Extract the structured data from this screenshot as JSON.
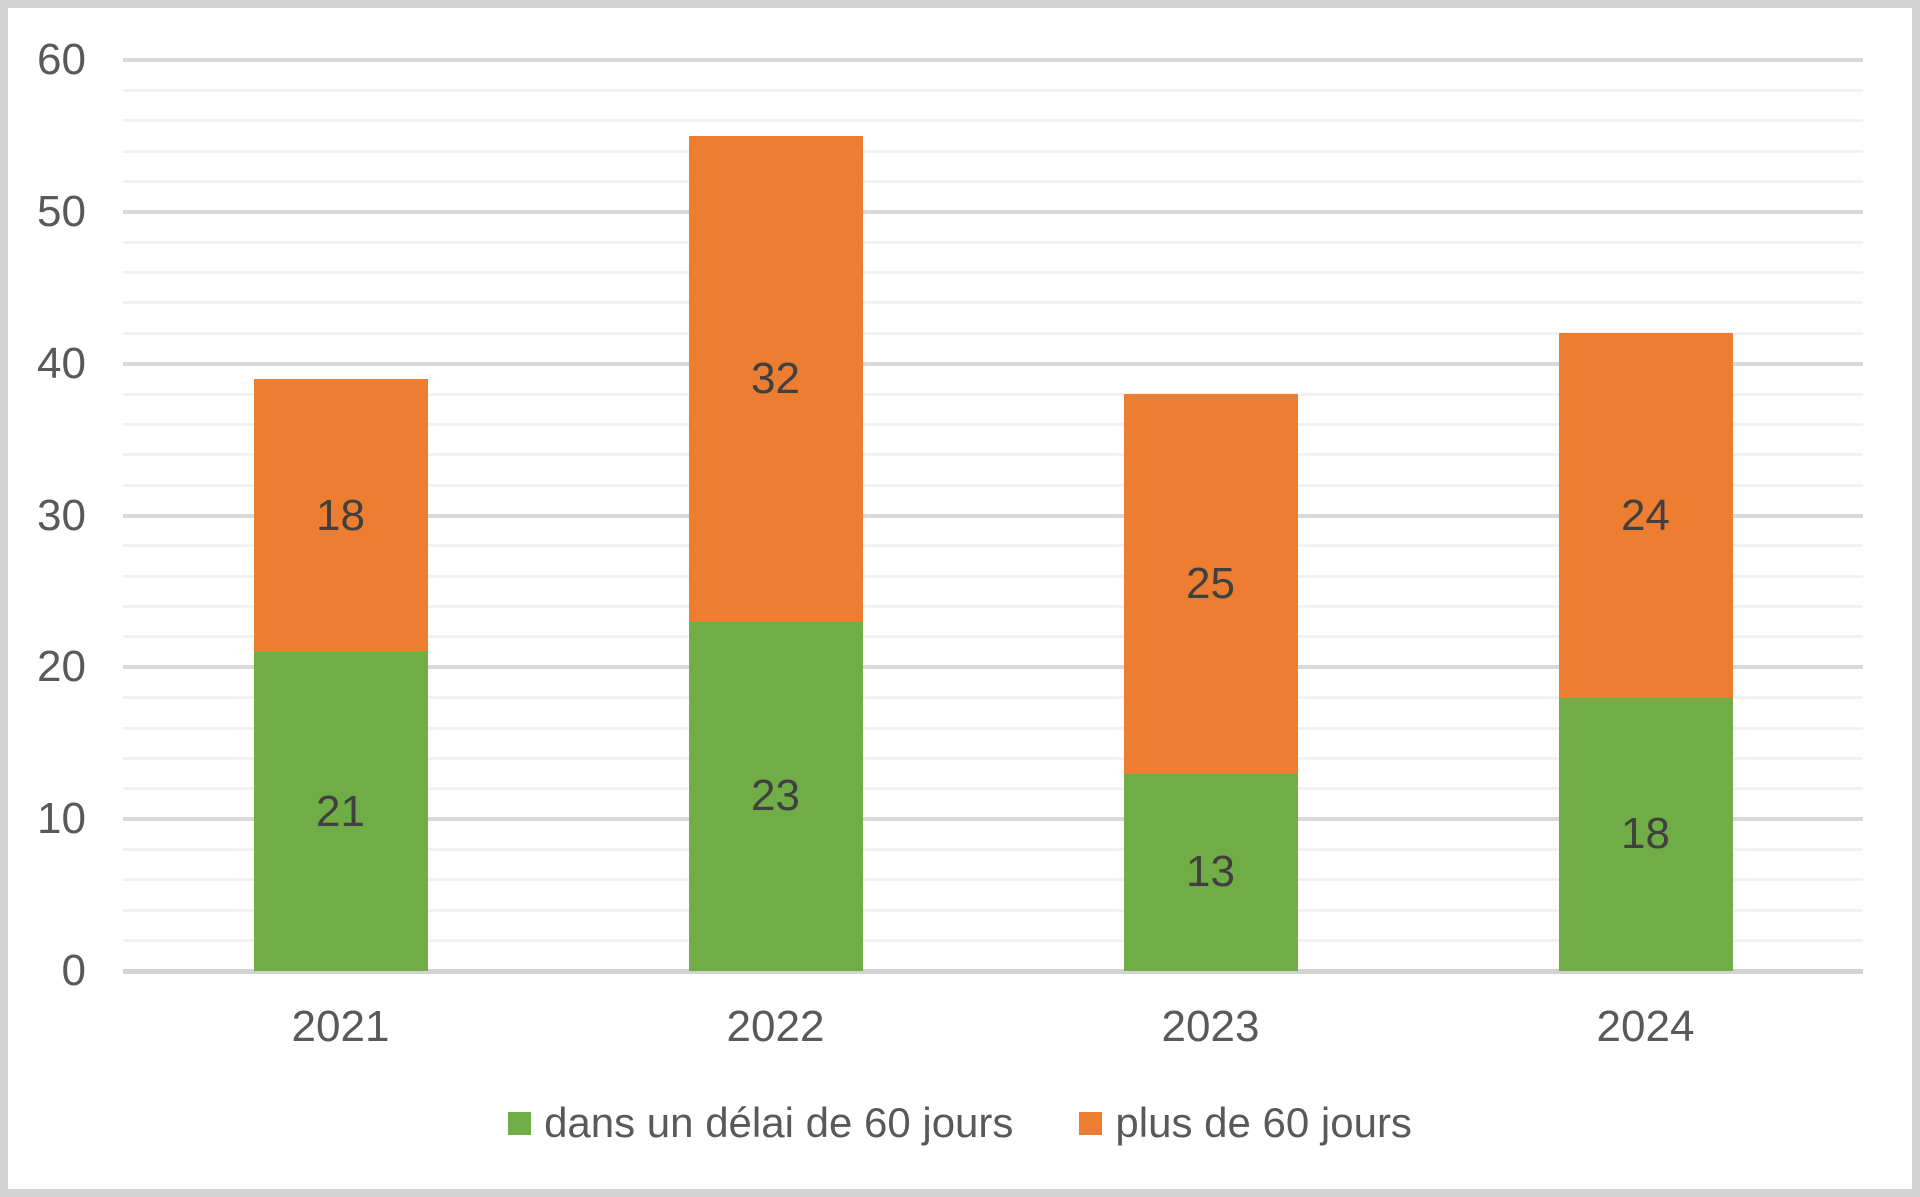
{
  "chart_data": {
    "type": "bar",
    "variant": "stacked-column",
    "title": "",
    "xlabel": "",
    "ylabel": "",
    "categories": [
      "2021",
      "2022",
      "2023",
      "2024"
    ],
    "series": [
      {
        "name": "dans un délai de 60 jours",
        "color": "#70AD47",
        "values": [
          21,
          23,
          13,
          18
        ]
      },
      {
        "name": "plus de 60 jours",
        "color": "#ED7D31",
        "values": [
          18,
          32,
          25,
          24
        ]
      }
    ],
    "ylim": [
      0,
      60
    ],
    "y_major_ticks": [
      0,
      10,
      20,
      30,
      40,
      50,
      60
    ],
    "y_minor_step": 2,
    "grid": {
      "major": true,
      "minor": true
    },
    "legend_position": "bottom",
    "data_labels": "inside-center"
  },
  "styles": {
    "series_colors": [
      "#70AD47",
      "#ED7D31"
    ],
    "data_label_color": "#404040",
    "axis_label_color": "#595959",
    "major_grid_color": "#d9d9d9",
    "minor_grid_color": "#f2f2f2",
    "axis_line_color": "#d2d2d2",
    "canvas_border_color": "#d3d3d3",
    "background": "#ffffff"
  }
}
